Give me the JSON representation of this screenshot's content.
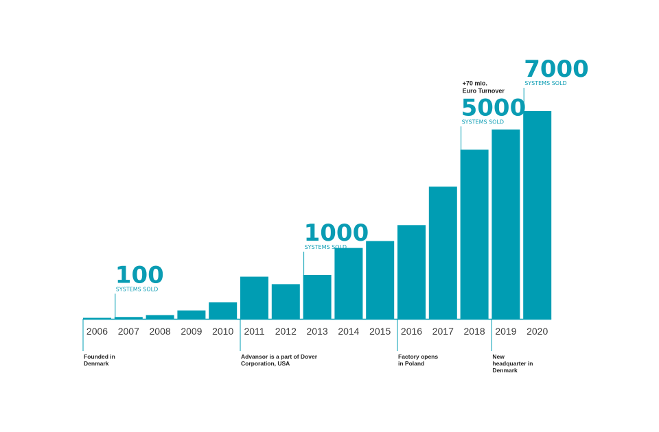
{
  "chart_data": {
    "type": "bar",
    "categories": [
      "2006",
      "2007",
      "2008",
      "2009",
      "2010",
      "2011",
      "2012",
      "2013",
      "2014",
      "2015",
      "2016",
      "2017",
      "2018",
      "2019",
      "2020"
    ],
    "values": [
      20,
      100,
      200,
      450,
      880,
      2250,
      1850,
      2340,
      3780,
      4150,
      5000,
      7050,
      9020,
      10100,
      11080
    ],
    "ylim": [
      0,
      11080
    ],
    "grid": false,
    "colors": {
      "bar": "#009db3",
      "callout_text": "#0a9cb3",
      "event_text": "#222222",
      "axis": "#009db3",
      "year_text": "#3a3a3a"
    },
    "milestones": [
      {
        "category": "2007",
        "number": "100",
        "caption": "SYSTEMS SOLD"
      },
      {
        "category": "2013",
        "number": "1000",
        "caption": "SYSTEMS SOLD"
      },
      {
        "category": "2018",
        "number": "5000",
        "caption": "SYSTEMS SOLD",
        "note": [
          "+70 mio.",
          "Euro Turnover"
        ]
      },
      {
        "category": "2020",
        "number": "7000",
        "caption": "SYSTEMS SOLD"
      }
    ],
    "events": [
      {
        "category": "2006",
        "lines": [
          "Founded in",
          "Denmark"
        ]
      },
      {
        "category": "2011",
        "lines": [
          "Advansor is a part of Dover",
          "Corporation, USA"
        ]
      },
      {
        "category": "2016",
        "lines": [
          "Factory opens",
          "in Poland"
        ]
      },
      {
        "category": "2019",
        "lines": [
          "New",
          "headquarter in",
          "Denmark"
        ]
      }
    ]
  }
}
